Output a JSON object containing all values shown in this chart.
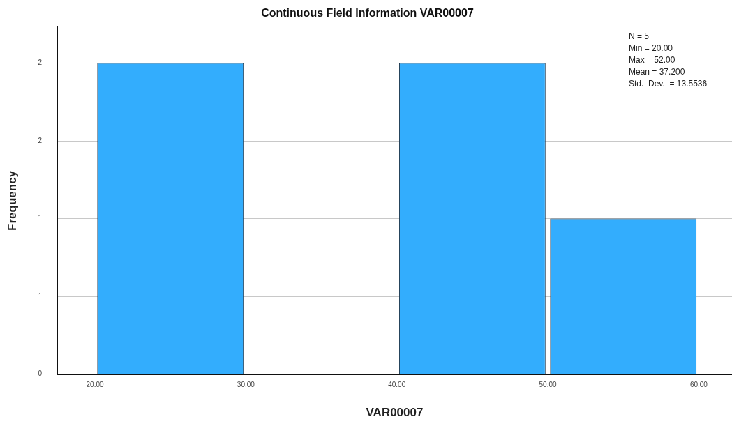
{
  "chart_data": {
    "type": "histogram",
    "title": "Continuous Field Information VAR00007",
    "xlabel": "VAR00007",
    "ylabel": "Frequency",
    "bins": [
      20,
      30,
      40,
      50,
      60
    ],
    "values": [
      2,
      0,
      2,
      1
    ],
    "color": "#33adfd",
    "xlim": [
      17.5,
      62.2
    ],
    "xticks": [
      {
        "value": 20,
        "label": "20.00"
      },
      {
        "value": 30,
        "label": "30.00"
      },
      {
        "value": 40,
        "label": "40.00"
      },
      {
        "value": 50,
        "label": "50.00"
      },
      {
        "value": 60,
        "label": "60.00"
      }
    ],
    "ylim": [
      0,
      2.23
    ],
    "yticks": [
      0,
      {
        "value": 0.5,
        "label": "1"
      },
      {
        "value": 1,
        "label": "1"
      },
      {
        "value": 1.5,
        "label": "2"
      },
      {
        "value": 2,
        "label": "2"
      }
    ],
    "grid": "y",
    "legend": false,
    "annotations": [
      "N = 5",
      "Min = 20.00",
      "Max = 52.00",
      "Mean = 37.200",
      "Std.  Dev.  = 13.5536"
    ]
  }
}
